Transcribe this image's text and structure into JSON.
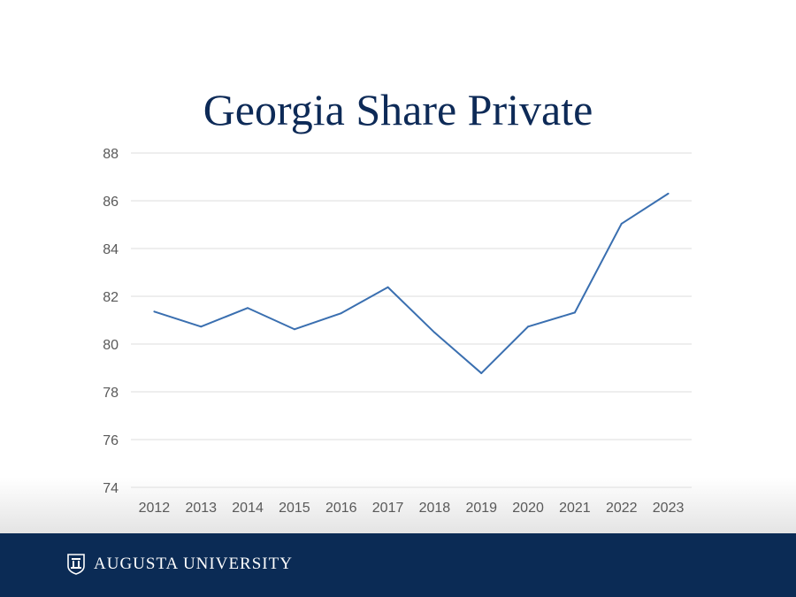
{
  "chart_data": {
    "type": "line",
    "title": "Georgia Share Private",
    "xlabel": "",
    "ylabel": "",
    "categories": [
      "2012",
      "2013",
      "2014",
      "2015",
      "2016",
      "2017",
      "2018",
      "2019",
      "2020",
      "2021",
      "2022",
      "2023"
    ],
    "series": [
      {
        "name": "Georgia Share Private",
        "values": [
          81.36,
          80.73,
          81.51,
          80.62,
          81.29,
          82.38,
          80.48,
          78.78,
          80.73,
          81.32,
          85.04,
          86.3
        ]
      }
    ],
    "ylim": [
      74,
      88
    ],
    "yticks": [
      74,
      76,
      78,
      80,
      82,
      84,
      86,
      88
    ],
    "grid": true,
    "legend": "none",
    "line_color": "#3a6fb0"
  },
  "footer": {
    "brand": "AUGUSTA UNIVERSITY"
  }
}
